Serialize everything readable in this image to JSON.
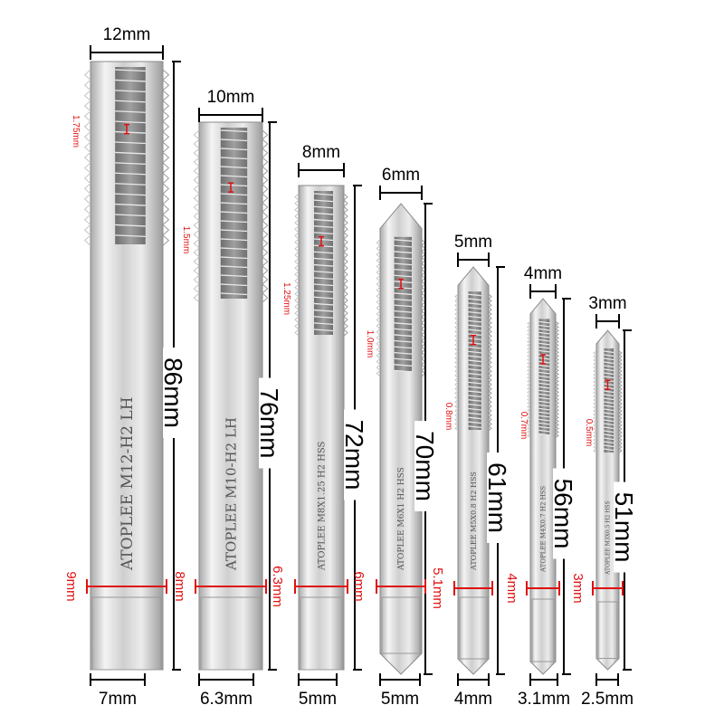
{
  "taps": [
    {
      "top_diameter": "12mm",
      "length": "86mm",
      "pitch": "1.75mm",
      "shank_diameter": "9mm",
      "square_size": "7mm",
      "marking": "ATOPLEE M12-H2 LH"
    },
    {
      "top_diameter": "10mm",
      "length": "76mm",
      "pitch": "1.5mm",
      "shank_diameter": "8mm",
      "square_size": "6.3mm",
      "marking": "ATOPLEE M10-H2 LH"
    },
    {
      "top_diameter": "8mm",
      "length": "72mm",
      "pitch": "1.25mm",
      "shank_diameter": "6.3mm",
      "square_size": "5mm",
      "marking": "ATOPLEE M8X1.25 H2 HSS"
    },
    {
      "top_diameter": "6mm",
      "length": "70mm",
      "pitch": "1.0mm",
      "shank_diameter": "6mm",
      "square_size": "5mm",
      "marking": "ATOPLEE M6X1 H2 HSS"
    },
    {
      "top_diameter": "5mm",
      "length": "61mm",
      "pitch": "0.8mm",
      "shank_diameter": "5.1mm",
      "square_size": "4mm",
      "marking": "ATOPLEE M5X0.8 H2 HSS"
    },
    {
      "top_diameter": "4mm",
      "length": "56mm",
      "pitch": "0.7mm",
      "shank_diameter": "4mm",
      "square_size": "3.1mm",
      "marking": "ATOPLEE M4X0.7 H2 HSS"
    },
    {
      "top_diameter": "3mm",
      "length": "51mm",
      "pitch": "0.5mm",
      "shank_diameter": "3mm",
      "square_size": "2.5mm",
      "marking": "ATOPLEE M3X0.5 H2 HSS"
    }
  ],
  "colors": {
    "dimension": "#000000",
    "annotation": "#e01010",
    "steel": "#c8c8c8"
  }
}
